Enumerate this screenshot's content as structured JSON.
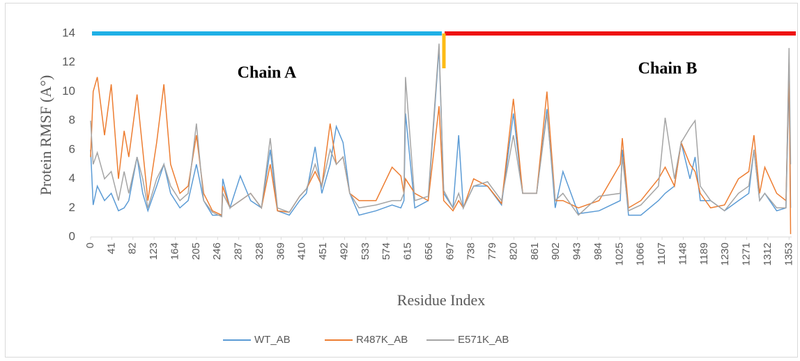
{
  "chart_data": {
    "type": "line",
    "ylabel": "Protein RMSF (A°)",
    "xlabel": "Residue Index",
    "annotations": [
      "Chain A",
      "Chain B"
    ],
    "x": [
      0,
      5,
      13,
      27,
      40,
      54,
      65,
      74,
      90,
      101,
      111,
      128,
      142,
      155,
      173,
      189,
      205,
      219,
      236,
      254,
      256,
      270,
      290,
      310,
      331,
      348,
      362,
      385,
      405,
      418,
      435,
      448,
      464,
      476,
      489,
      502,
      520,
      553,
      584,
      601,
      607,
      610,
      628,
      654,
      675,
      684,
      702,
      713,
      722,
      742,
      769,
      796,
      819,
      837,
      864,
      884,
      900,
      915,
      945,
      985,
      1026,
      1030,
      1042,
      1066,
      1100,
      1113,
      1131,
      1144,
      1161,
      1171,
      1181,
      1201,
      1228,
      1255,
      1275,
      1285,
      1296,
      1306,
      1329,
      1347,
      1353,
      1356
    ],
    "series": [
      {
        "name": "WT_AB",
        "color": "#5b9bd5",
        "values": [
          6,
          2.2,
          3.5,
          2.5,
          3,
          1.8,
          2,
          2.5,
          5.5,
          3,
          1.8,
          3.5,
          5,
          3,
          2,
          2.5,
          5,
          2.5,
          1.5,
          1.5,
          4,
          2,
          4.2,
          2.5,
          2,
          6,
          1.8,
          1.5,
          2.5,
          3,
          6.2,
          3,
          5,
          7.6,
          6.5,
          3,
          1.5,
          1.8,
          2.2,
          2,
          2.5,
          8.5,
          2,
          2.5,
          13,
          3,
          2,
          7,
          2,
          3.5,
          3.5,
          2.2,
          8.5,
          3,
          3,
          8.8,
          2,
          4.5,
          1.6,
          1.8,
          2.5,
          6,
          1.5,
          1.5,
          2.5,
          3,
          3.5,
          6.5,
          4,
          5.5,
          2.5,
          2.5,
          1.8,
          2.5,
          3,
          6,
          2.5,
          3,
          1.8,
          2,
          11,
          2
        ]
      },
      {
        "name": "R487K_AB",
        "color": "#ed7d31",
        "values": [
          5.5,
          10,
          11,
          7,
          10.5,
          4,
          7.3,
          5.5,
          9.8,
          6,
          2.5,
          6.5,
          10.5,
          5,
          3,
          3.5,
          7,
          3,
          1.8,
          1.5,
          3.5,
          2,
          2.5,
          3,
          2,
          5,
          1.8,
          1.7,
          2.8,
          3.3,
          4.5,
          3.5,
          7.8,
          5,
          5.5,
          3,
          2.5,
          2.5,
          4.8,
          4.2,
          3,
          4,
          3,
          2.5,
          9,
          2.5,
          1.8,
          2.5,
          2,
          4,
          3.5,
          2.3,
          9.5,
          3,
          3,
          10,
          2.5,
          2.5,
          2,
          2.5,
          5,
          6.8,
          2,
          2.5,
          4,
          4.8,
          3.5,
          6.5,
          5,
          4.5,
          3,
          2,
          2.2,
          4,
          4.5,
          7,
          3,
          4.8,
          3,
          2.5,
          12,
          0.2
        ]
      },
      {
        "name": "E571K_AB",
        "color": "#a5a5a5",
        "values": [
          8,
          5,
          5.8,
          4,
          4.5,
          2.5,
          4.5,
          3,
          5.5,
          4,
          2,
          4,
          5,
          3.5,
          2.5,
          3,
          7.8,
          2.5,
          1.7,
          1.4,
          3,
          2,
          2.5,
          3,
          2,
          6.8,
          2,
          1.7,
          2.8,
          3.3,
          5,
          3.5,
          6,
          5,
          5.5,
          3,
          2,
          2.2,
          2.5,
          2.5,
          3,
          11,
          2.5,
          2.8,
          13.3,
          3.2,
          2,
          3,
          2,
          3.5,
          3.8,
          2.5,
          7,
          3,
          3,
          8.5,
          2.5,
          3,
          1.5,
          2.8,
          3,
          5.5,
          1.8,
          2.2,
          3.5,
          8.2,
          4,
          6.5,
          7.5,
          8,
          3.5,
          2.5,
          1.8,
          3,
          3.5,
          6,
          2.5,
          3,
          2,
          2,
          13,
          5
        ]
      }
    ],
    "xlim": [
      0,
      1358
    ],
    "xticks": [
      0,
      41,
      82,
      123,
      164,
      205,
      246,
      287,
      328,
      369,
      410,
      451,
      492,
      533,
      574,
      615,
      656,
      697,
      738,
      779,
      820,
      861,
      902,
      943,
      984,
      1025,
      1066,
      1107,
      1148,
      1189,
      1230,
      1271,
      1312,
      1353
    ],
    "ylim": [
      0,
      14
    ],
    "yticks": [
      0,
      2,
      4,
      6,
      8,
      10,
      12,
      14
    ],
    "legend": "bottom"
  }
}
